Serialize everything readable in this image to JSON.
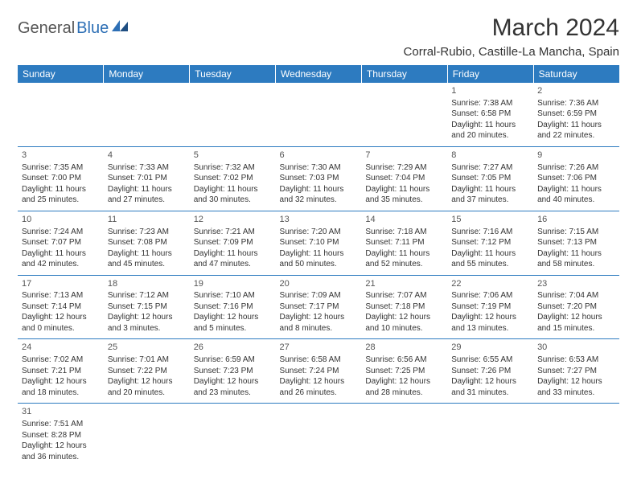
{
  "logo": {
    "part1": "General",
    "part2": "Blue"
  },
  "title": "March 2024",
  "subtitle": "Corral-Rubio, Castille-La Mancha, Spain",
  "colors": {
    "header_bg": "#2d7bc0",
    "header_fg": "#ffffff",
    "border": "#2d7bc0",
    "logo_accent": "#2d6fb5"
  },
  "day_headers": [
    "Sunday",
    "Monday",
    "Tuesday",
    "Wednesday",
    "Thursday",
    "Friday",
    "Saturday"
  ],
  "weeks": [
    [
      null,
      null,
      null,
      null,
      null,
      {
        "n": "1",
        "sr": "Sunrise: 7:38 AM",
        "ss": "Sunset: 6:58 PM",
        "dl": "Daylight: 11 hours and 20 minutes."
      },
      {
        "n": "2",
        "sr": "Sunrise: 7:36 AM",
        "ss": "Sunset: 6:59 PM",
        "dl": "Daylight: 11 hours and 22 minutes."
      }
    ],
    [
      {
        "n": "3",
        "sr": "Sunrise: 7:35 AM",
        "ss": "Sunset: 7:00 PM",
        "dl": "Daylight: 11 hours and 25 minutes."
      },
      {
        "n": "4",
        "sr": "Sunrise: 7:33 AM",
        "ss": "Sunset: 7:01 PM",
        "dl": "Daylight: 11 hours and 27 minutes."
      },
      {
        "n": "5",
        "sr": "Sunrise: 7:32 AM",
        "ss": "Sunset: 7:02 PM",
        "dl": "Daylight: 11 hours and 30 minutes."
      },
      {
        "n": "6",
        "sr": "Sunrise: 7:30 AM",
        "ss": "Sunset: 7:03 PM",
        "dl": "Daylight: 11 hours and 32 minutes."
      },
      {
        "n": "7",
        "sr": "Sunrise: 7:29 AM",
        "ss": "Sunset: 7:04 PM",
        "dl": "Daylight: 11 hours and 35 minutes."
      },
      {
        "n": "8",
        "sr": "Sunrise: 7:27 AM",
        "ss": "Sunset: 7:05 PM",
        "dl": "Daylight: 11 hours and 37 minutes."
      },
      {
        "n": "9",
        "sr": "Sunrise: 7:26 AM",
        "ss": "Sunset: 7:06 PM",
        "dl": "Daylight: 11 hours and 40 minutes."
      }
    ],
    [
      {
        "n": "10",
        "sr": "Sunrise: 7:24 AM",
        "ss": "Sunset: 7:07 PM",
        "dl": "Daylight: 11 hours and 42 minutes."
      },
      {
        "n": "11",
        "sr": "Sunrise: 7:23 AM",
        "ss": "Sunset: 7:08 PM",
        "dl": "Daylight: 11 hours and 45 minutes."
      },
      {
        "n": "12",
        "sr": "Sunrise: 7:21 AM",
        "ss": "Sunset: 7:09 PM",
        "dl": "Daylight: 11 hours and 47 minutes."
      },
      {
        "n": "13",
        "sr": "Sunrise: 7:20 AM",
        "ss": "Sunset: 7:10 PM",
        "dl": "Daylight: 11 hours and 50 minutes."
      },
      {
        "n": "14",
        "sr": "Sunrise: 7:18 AM",
        "ss": "Sunset: 7:11 PM",
        "dl": "Daylight: 11 hours and 52 minutes."
      },
      {
        "n": "15",
        "sr": "Sunrise: 7:16 AM",
        "ss": "Sunset: 7:12 PM",
        "dl": "Daylight: 11 hours and 55 minutes."
      },
      {
        "n": "16",
        "sr": "Sunrise: 7:15 AM",
        "ss": "Sunset: 7:13 PM",
        "dl": "Daylight: 11 hours and 58 minutes."
      }
    ],
    [
      {
        "n": "17",
        "sr": "Sunrise: 7:13 AM",
        "ss": "Sunset: 7:14 PM",
        "dl": "Daylight: 12 hours and 0 minutes."
      },
      {
        "n": "18",
        "sr": "Sunrise: 7:12 AM",
        "ss": "Sunset: 7:15 PM",
        "dl": "Daylight: 12 hours and 3 minutes."
      },
      {
        "n": "19",
        "sr": "Sunrise: 7:10 AM",
        "ss": "Sunset: 7:16 PM",
        "dl": "Daylight: 12 hours and 5 minutes."
      },
      {
        "n": "20",
        "sr": "Sunrise: 7:09 AM",
        "ss": "Sunset: 7:17 PM",
        "dl": "Daylight: 12 hours and 8 minutes."
      },
      {
        "n": "21",
        "sr": "Sunrise: 7:07 AM",
        "ss": "Sunset: 7:18 PM",
        "dl": "Daylight: 12 hours and 10 minutes."
      },
      {
        "n": "22",
        "sr": "Sunrise: 7:06 AM",
        "ss": "Sunset: 7:19 PM",
        "dl": "Daylight: 12 hours and 13 minutes."
      },
      {
        "n": "23",
        "sr": "Sunrise: 7:04 AM",
        "ss": "Sunset: 7:20 PM",
        "dl": "Daylight: 12 hours and 15 minutes."
      }
    ],
    [
      {
        "n": "24",
        "sr": "Sunrise: 7:02 AM",
        "ss": "Sunset: 7:21 PM",
        "dl": "Daylight: 12 hours and 18 minutes."
      },
      {
        "n": "25",
        "sr": "Sunrise: 7:01 AM",
        "ss": "Sunset: 7:22 PM",
        "dl": "Daylight: 12 hours and 20 minutes."
      },
      {
        "n": "26",
        "sr": "Sunrise: 6:59 AM",
        "ss": "Sunset: 7:23 PM",
        "dl": "Daylight: 12 hours and 23 minutes."
      },
      {
        "n": "27",
        "sr": "Sunrise: 6:58 AM",
        "ss": "Sunset: 7:24 PM",
        "dl": "Daylight: 12 hours and 26 minutes."
      },
      {
        "n": "28",
        "sr": "Sunrise: 6:56 AM",
        "ss": "Sunset: 7:25 PM",
        "dl": "Daylight: 12 hours and 28 minutes."
      },
      {
        "n": "29",
        "sr": "Sunrise: 6:55 AM",
        "ss": "Sunset: 7:26 PM",
        "dl": "Daylight: 12 hours and 31 minutes."
      },
      {
        "n": "30",
        "sr": "Sunrise: 6:53 AM",
        "ss": "Sunset: 7:27 PM",
        "dl": "Daylight: 12 hours and 33 minutes."
      }
    ],
    [
      {
        "n": "31",
        "sr": "Sunrise: 7:51 AM",
        "ss": "Sunset: 8:28 PM",
        "dl": "Daylight: 12 hours and 36 minutes."
      },
      null,
      null,
      null,
      null,
      null,
      null
    ]
  ]
}
